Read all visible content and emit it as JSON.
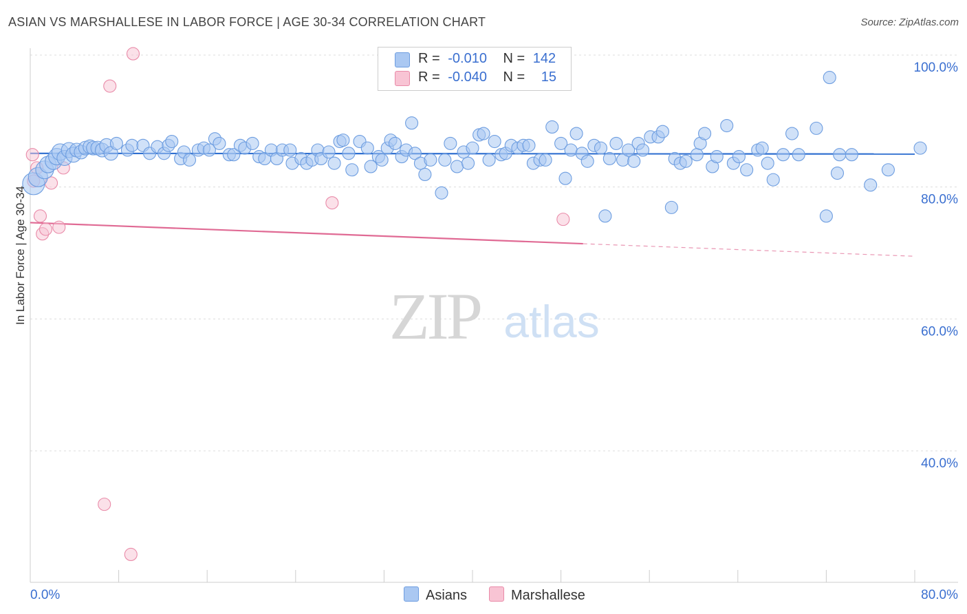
{
  "header": {
    "title": "ASIAN VS MARSHALLESE IN LABOR FORCE | AGE 30-34 CORRELATION CHART",
    "source": "Source: ZipAtlas.com"
  },
  "legend": {
    "asians": {
      "r_label": "R =",
      "r_value": "-0.010",
      "n_label": "N =",
      "n_value": "142"
    },
    "marshallese": {
      "r_label": "R =",
      "r_value": "-0.040",
      "n_label": "N =",
      "n_value": "15"
    }
  },
  "series_labels": {
    "asians": "Asians",
    "marshallese": "Marshallese"
  },
  "watermark": {
    "zip": "ZIP",
    "atlas": "atlas"
  },
  "colors": {
    "asian_fill": "#aac8f2",
    "asian_stroke": "#6d9de0",
    "asian_line": "#2f6fd0",
    "marsh_fill": "#f8c4d4",
    "marsh_stroke": "#e98aa8",
    "marsh_line": "#e06a94",
    "axis_text": "#3a6fd0"
  },
  "chart_data": {
    "type": "scatter",
    "title": "ASIAN VS MARSHALLESE IN LABOR FORCE | AGE 30-34 CORRELATION CHART",
    "xlabel": "",
    "ylabel": "In Labor Force | Age 30-34",
    "xlim": [
      0,
      80
    ],
    "ylim": [
      20,
      102
    ],
    "x_ticks": [
      "0.0%",
      "80.0%"
    ],
    "y_ticks": [
      {
        "value": 40,
        "label": "40.0%"
      },
      {
        "value": 60,
        "label": "60.0%"
      },
      {
        "value": 80,
        "label": "80.0%"
      },
      {
        "value": 100,
        "label": "100.0%"
      }
    ],
    "grid": "horizontal-dashed",
    "legend_position": "top-center",
    "series": [
      {
        "name": "Asians",
        "trend": {
          "x0": 0,
          "y0": 85.1,
          "x1": 80,
          "y1": 85.0
        },
        "points": [
          [
            0.3,
            80.5,
            16
          ],
          [
            0.7,
            81.5,
            14
          ],
          [
            1.3,
            82.6,
            13
          ],
          [
            1.6,
            83.4,
            12
          ],
          [
            2.1,
            83.9,
            12
          ],
          [
            2.4,
            84.6,
            12
          ],
          [
            2.7,
            85.3,
            12
          ],
          [
            3.1,
            84.4,
            11
          ],
          [
            3.5,
            85.6,
            11
          ],
          [
            3.9,
            84.9,
            11
          ],
          [
            4.2,
            85.6,
            10
          ],
          [
            4.6,
            85.3,
            10
          ],
          [
            5.0,
            85.9,
            10
          ],
          [
            5.4,
            86.1,
            10
          ],
          [
            5.7,
            85.9,
            10
          ],
          [
            6.1,
            85.9,
            10
          ],
          [
            6.5,
            85.6,
            10
          ],
          [
            6.9,
            86.3,
            10
          ],
          [
            7.3,
            85.1,
            10
          ],
          [
            7.8,
            86.6,
            9
          ],
          [
            8.8,
            85.6,
            9
          ],
          [
            9.2,
            86.3,
            9
          ],
          [
            10.2,
            86.3,
            9
          ],
          [
            10.8,
            85.1,
            9
          ],
          [
            11.5,
            86.1,
            9
          ],
          [
            12.1,
            85.1,
            9
          ],
          [
            12.5,
            86.3,
            9
          ],
          [
            12.8,
            86.9,
            9
          ],
          [
            13.6,
            84.3,
            9
          ],
          [
            13.9,
            85.3,
            9
          ],
          [
            14.4,
            84.1,
            9
          ],
          [
            15.2,
            85.6,
            9
          ],
          [
            15.7,
            85.9,
            9
          ],
          [
            16.2,
            85.6,
            9
          ],
          [
            16.7,
            87.3,
            9
          ],
          [
            17.1,
            86.6,
            9
          ],
          [
            18.0,
            84.9,
            9
          ],
          [
            18.4,
            84.9,
            9
          ],
          [
            19.0,
            86.3,
            9
          ],
          [
            19.4,
            85.9,
            9
          ],
          [
            20.1,
            86.6,
            9
          ],
          [
            20.7,
            84.6,
            9
          ],
          [
            21.2,
            84.3,
            9
          ],
          [
            21.8,
            85.6,
            9
          ],
          [
            22.3,
            84.3,
            9
          ],
          [
            22.8,
            85.6,
            9
          ],
          [
            23.5,
            85.6,
            9
          ],
          [
            23.7,
            83.6,
            9
          ],
          [
            24.5,
            84.3,
            9
          ],
          [
            25.0,
            83.6,
            9
          ],
          [
            25.5,
            84.1,
            9
          ],
          [
            26.0,
            85.6,
            9
          ],
          [
            26.3,
            84.3,
            9
          ],
          [
            27.0,
            85.3,
            9
          ],
          [
            27.5,
            83.6,
            9
          ],
          [
            28.0,
            86.9,
            9
          ],
          [
            28.3,
            87.1,
            9
          ],
          [
            28.8,
            85.1,
            9
          ],
          [
            29.1,
            82.6,
            9
          ],
          [
            29.8,
            86.9,
            9
          ],
          [
            30.5,
            85.9,
            9
          ],
          [
            30.8,
            83.1,
            9
          ],
          [
            31.5,
            84.6,
            9
          ],
          [
            31.8,
            84.1,
            9
          ],
          [
            32.3,
            85.9,
            9
          ],
          [
            32.6,
            87.1,
            9
          ],
          [
            33.0,
            86.6,
            9
          ],
          [
            33.6,
            84.6,
            9
          ],
          [
            34.0,
            85.6,
            9
          ],
          [
            34.5,
            89.7,
            9
          ],
          [
            34.8,
            85.1,
            9
          ],
          [
            35.3,
            83.6,
            9
          ],
          [
            35.7,
            81.9,
            9
          ],
          [
            36.2,
            84.1,
            9
          ],
          [
            37.2,
            79.1,
            9
          ],
          [
            37.5,
            84.1,
            9
          ],
          [
            38.0,
            86.6,
            9
          ],
          [
            38.6,
            83.1,
            9
          ],
          [
            39.2,
            85.3,
            9
          ],
          [
            39.6,
            83.6,
            9
          ],
          [
            40.0,
            85.9,
            9
          ],
          [
            40.6,
            87.9,
            9
          ],
          [
            41.0,
            88.1,
            9
          ],
          [
            41.5,
            84.1,
            9
          ],
          [
            42.0,
            86.9,
            9
          ],
          [
            42.6,
            84.9,
            9
          ],
          [
            43.0,
            85.1,
            9
          ],
          [
            43.5,
            86.3,
            9
          ],
          [
            44.1,
            85.9,
            9
          ],
          [
            44.6,
            86.3,
            9
          ],
          [
            45.1,
            86.3,
            9
          ],
          [
            45.5,
            83.6,
            9
          ],
          [
            46.1,
            84.1,
            9
          ],
          [
            46.6,
            84.1,
            9
          ],
          [
            47.2,
            89.1,
            9
          ],
          [
            48.0,
            86.6,
            9
          ],
          [
            48.4,
            81.3,
            9
          ],
          [
            48.9,
            85.6,
            9
          ],
          [
            49.4,
            88.1,
            9
          ],
          [
            49.9,
            85.1,
            9
          ],
          [
            50.4,
            83.9,
            9
          ],
          [
            51.0,
            86.3,
            9
          ],
          [
            51.6,
            85.9,
            9
          ],
          [
            52.0,
            75.6,
            9
          ],
          [
            52.4,
            84.3,
            9
          ],
          [
            53.0,
            86.6,
            9
          ],
          [
            53.6,
            84.1,
            9
          ],
          [
            54.1,
            85.6,
            9
          ],
          [
            54.6,
            83.9,
            9
          ],
          [
            55.0,
            86.6,
            9
          ],
          [
            55.4,
            85.6,
            9
          ],
          [
            56.1,
            87.6,
            9
          ],
          [
            56.8,
            87.6,
            9
          ],
          [
            57.2,
            88.4,
            9
          ],
          [
            58.0,
            76.9,
            9
          ],
          [
            58.3,
            84.3,
            9
          ],
          [
            58.8,
            83.6,
            9
          ],
          [
            59.3,
            83.9,
            9
          ],
          [
            60.3,
            84.9,
            9
          ],
          [
            60.6,
            86.6,
            9
          ],
          [
            61.0,
            88.1,
            9
          ],
          [
            61.7,
            83.1,
            9
          ],
          [
            62.1,
            84.6,
            9
          ],
          [
            63.0,
            89.3,
            9
          ],
          [
            63.6,
            83.6,
            9
          ],
          [
            64.1,
            84.6,
            9
          ],
          [
            64.8,
            82.6,
            9
          ],
          [
            65.8,
            85.6,
            9
          ],
          [
            66.2,
            85.9,
            9
          ],
          [
            66.7,
            83.6,
            9
          ],
          [
            67.2,
            81.1,
            9
          ],
          [
            68.1,
            84.9,
            9
          ],
          [
            68.9,
            88.1,
            9
          ],
          [
            69.5,
            84.9,
            9
          ],
          [
            71.1,
            88.9,
            9
          ],
          [
            72.0,
            75.6,
            9
          ],
          [
            72.3,
            96.6,
            9
          ],
          [
            73.0,
            82.1,
            9
          ],
          [
            73.2,
            84.9,
            9
          ],
          [
            74.3,
            84.9,
            9
          ],
          [
            76.0,
            80.3,
            9
          ],
          [
            77.6,
            82.6,
            9
          ],
          [
            80.5,
            85.9,
            9
          ]
        ]
      },
      {
        "name": "Marshallese",
        "trend": {
          "x0": 0,
          "y0": 74.6,
          "x1": 50,
          "y1": 71.4,
          "dashed_x1": 80,
          "dashed_y1": 69.5
        },
        "points": [
          [
            0.2,
            84.9,
            9
          ],
          [
            0.6,
            82.9,
            9
          ],
          [
            0.3,
            80.9,
            9
          ],
          [
            0.9,
            75.6,
            9
          ],
          [
            1.1,
            72.9,
            9
          ],
          [
            1.4,
            73.6,
            9
          ],
          [
            1.9,
            80.6,
            9
          ],
          [
            2.6,
            73.9,
            9
          ],
          [
            3.0,
            82.9,
            9
          ],
          [
            7.2,
            95.3,
            9
          ],
          [
            9.3,
            100.2,
            9
          ],
          [
            6.7,
            31.9,
            9
          ],
          [
            9.1,
            24.3,
            9
          ],
          [
            27.3,
            77.6,
            9
          ],
          [
            48.2,
            75.1,
            9
          ]
        ]
      }
    ]
  }
}
